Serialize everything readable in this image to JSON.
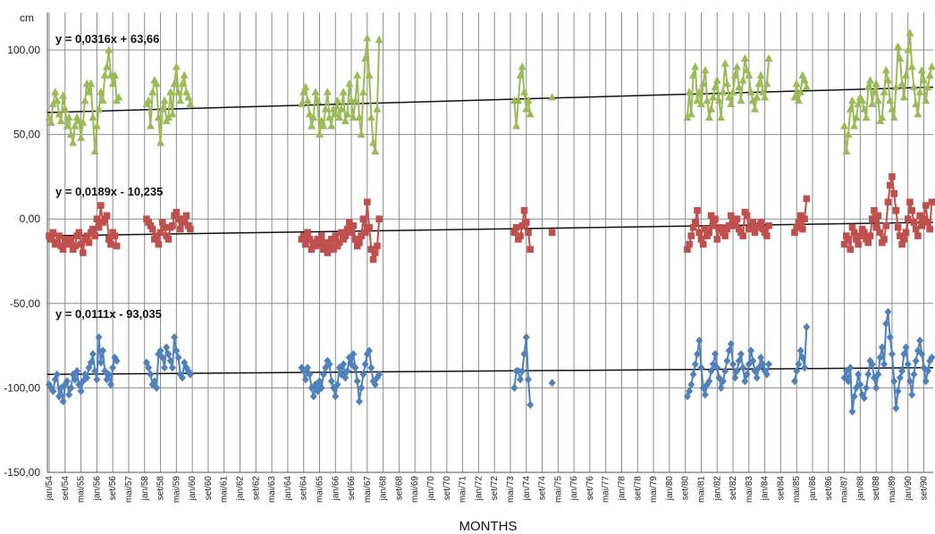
{
  "chart_data": {
    "type": "scatter",
    "title": "",
    "xlabel": "MONTHS",
    "ylabel": "",
    "y_unit": "cm",
    "ylim": [
      -150,
      120
    ],
    "y_ticks": [
      {
        "value": 100,
        "label": "100,00"
      },
      {
        "value": 50,
        "label": "50,00"
      },
      {
        "value": 0,
        "label": "0,00"
      },
      {
        "value": -50,
        "label": "-50,00"
      },
      {
        "value": -100,
        "label": "-100,00"
      },
      {
        "value": -150,
        "label": "-150,00"
      }
    ],
    "x_ticks": [
      "jan/54",
      "set/54",
      "mai/55",
      "jan/56",
      "set/56",
      "mai/57",
      "jan/58",
      "set/58",
      "mai/59",
      "jan/60",
      "set/60",
      "mai/61",
      "jan/62",
      "set/62",
      "mai/63",
      "jan/64",
      "set/64",
      "mai/65",
      "jan/66",
      "set/66",
      "mai/67",
      "jan/68",
      "set/68",
      "mai/69",
      "jan/70",
      "set/70",
      "mai/71",
      "jan/72",
      "set/72",
      "mai/73",
      "jan/74",
      "set/74",
      "mai/75",
      "jan/76",
      "set/76",
      "mai/77",
      "jan/78",
      "set/78",
      "mai/79",
      "jan/80",
      "set/80",
      "mai/81",
      "jan/82",
      "set/82",
      "mai/83",
      "jan/84",
      "set/84",
      "mai/85",
      "jan/86",
      "set/86",
      "mai/87",
      "jan/88",
      "set/88",
      "mai/89",
      "jan/90",
      "set/90"
    ],
    "grid": true,
    "series": [
      {
        "name": "",
        "color": "#9bbb59",
        "marker": "triangle",
        "trendline": {
          "label": "y = 0,0316x + 63,66",
          "start": 63,
          "end": 78
        },
        "segments": [
          {
            "start_index": 0,
            "values": [
              60,
              57,
              68,
              75,
              70,
              62,
              58,
              73,
              65,
              55,
              60,
              50,
              45,
              55,
              60,
              58,
              48,
              57,
              70,
              80,
              75,
              80,
              60,
              40,
              55,
              65,
              75,
              70,
              85,
              90,
              100,
              85,
              80,
              85,
              70,
              72
            ]
          },
          {
            "start_index": 49,
            "values": [
              68,
              70,
              55,
              75,
              82,
              80,
              60,
              45,
              65,
              70,
              58,
              60,
              75,
              62,
              80,
              90,
              75,
              70,
              80,
              85,
              75,
              72,
              68
            ]
          },
          {
            "start_index": 127,
            "values": [
              68,
              75,
              78,
              70,
              62,
              55,
              60,
              75,
              70,
              50,
              58,
              55,
              65,
              75,
              60,
              55,
              65,
              62,
              70,
              60,
              65,
              75,
              58,
              62,
              80,
              70,
              60,
              70,
              85,
              60,
              50,
              75,
              95,
              107,
              85,
              60,
              45,
              40,
              65,
              106
            ]
          },
          {
            "start_index": 234,
            "values": [
              70,
              55,
              70,
              85,
              90,
              75,
              65,
              70,
              62
            ]
          },
          {
            "start_index": 253,
            "values": [
              72
            ]
          },
          {
            "start_index": 321,
            "values": [
              60,
              75,
              62,
              85,
              90,
              70,
              75,
              68,
              80,
              88,
              70,
              60,
              65,
              72,
              78,
              82,
              70,
              60,
              75,
              92,
              80,
              72,
              68,
              75,
              85,
              90,
              78,
              70,
              82,
              95,
              88,
              85,
              75,
              70,
              65,
              72,
              80,
              85,
              75,
              72,
              80,
              95
            ]
          },
          {
            "start_index": 375,
            "values": [
              72,
              80,
              70,
              75,
              85,
              82,
              78
            ]
          },
          {
            "start_index": 400,
            "values": [
              55,
              40,
              50,
              65,
              70,
              55,
              60,
              68,
              72,
              70,
              65,
              60,
              78,
              82,
              68,
              75,
              80,
              70,
              58,
              60,
              75,
              88,
              82,
              70,
              65,
              60,
              78,
              102,
              95,
              80,
              72,
              85,
              100,
              110,
              90,
              78,
              68,
              62,
              75,
              88,
              82,
              70,
              78,
              85,
              90
            ]
          }
        ]
      },
      {
        "name": "",
        "color": "#c0504d",
        "marker": "square",
        "trendline": {
          "label": "y = 0,0189x - 10,235",
          "start": -10,
          "end": -2
        },
        "segments": [
          {
            "start_index": 0,
            "values": [
              -10,
              -12,
              -8,
              -15,
              -14,
              -10,
              -16,
              -18,
              -12,
              -15,
              -14,
              -12,
              -18,
              -16,
              -10,
              -8,
              -15,
              -20,
              -12,
              -10,
              -14,
              -8,
              -6,
              -10,
              0,
              -5,
              8,
              -2,
              0,
              2,
              -12,
              -15,
              -8,
              -10,
              -16
            ]
          },
          {
            "start_index": 49,
            "values": [
              0,
              -2,
              -4,
              -6,
              -12,
              -10,
              -15,
              -8,
              -2,
              -5,
              -10,
              -12,
              -5,
              -4,
              2,
              4,
              0,
              -6,
              -2,
              0,
              2,
              -4,
              -6
            ]
          },
          {
            "start_index": 127,
            "values": [
              -12,
              -10,
              -15,
              -8,
              -12,
              -18,
              -14,
              -16,
              -12,
              -15,
              -10,
              -18,
              -14,
              -20,
              -16,
              -12,
              -18,
              -10,
              -16,
              -14,
              -8,
              -12,
              -10,
              -6,
              -2,
              -8,
              -4,
              -12,
              -16,
              -14,
              -10,
              0,
              -8,
              10,
              -5,
              -18,
              -24,
              -20,
              -16,
              0
            ]
          },
          {
            "start_index": 234,
            "values": [
              -8,
              -5,
              -12,
              -10,
              -4,
              5,
              -2,
              -8,
              -18
            ]
          },
          {
            "start_index": 253,
            "values": [
              -8
            ]
          },
          {
            "start_index": 321,
            "values": [
              -18,
              -15,
              -10,
              -5,
              -2,
              5,
              -8,
              -12,
              -15,
              -6,
              -10,
              -8,
              2,
              -4,
              0,
              -12,
              -6,
              -5,
              -8,
              -10,
              -6,
              -4,
              2,
              -2,
              -4,
              0,
              -6,
              -8,
              -10,
              4,
              2,
              -6,
              -4,
              -2,
              -8,
              -5,
              -4,
              -2,
              -6,
              -8,
              -10,
              -4
            ]
          },
          {
            "start_index": 375,
            "values": [
              -8,
              -5,
              -2,
              2,
              -6,
              0,
              12
            ]
          },
          {
            "start_index": 400,
            "values": [
              -15,
              -10,
              -12,
              -18,
              -5,
              -8,
              -12,
              -15,
              -10,
              -6,
              -8,
              -12,
              -14,
              -10,
              0,
              5,
              -5,
              2,
              -8,
              -14,
              -12,
              -4,
              10,
              20,
              25,
              15,
              5,
              -5,
              -10,
              -15,
              -12,
              -8,
              0,
              10,
              5,
              -2,
              -6,
              -10,
              2,
              -4,
              0,
              8,
              -2,
              -6,
              10
            ]
          }
        ]
      },
      {
        "name": "",
        "color": "#4f81bd",
        "marker": "diamond",
        "trendline": {
          "label": "y = 0,0111x - 93,035",
          "start": -92,
          "end": -88
        },
        "segments": [
          {
            "start_index": 0,
            "values": [
              -98,
              -100,
              -102,
              -95,
              -92,
              -105,
              -100,
              -108,
              -98,
              -96,
              -104,
              -100,
              -92,
              -95,
              -90,
              -98,
              -102,
              -96,
              -92,
              -94,
              -88,
              -85,
              -80,
              -90,
              -95,
              -70,
              -85,
              -78,
              -90,
              -95,
              -92,
              -98,
              -88,
              -82,
              -84
            ]
          },
          {
            "start_index": 49,
            "values": [
              -85,
              -88,
              -92,
              -98,
              -96,
              -100,
              -80,
              -78,
              -82,
              -88,
              -76,
              -80,
              -84,
              -88,
              -70,
              -78,
              -82,
              -92,
              -94,
              -85,
              -88,
              -90,
              -92
            ]
          },
          {
            "start_index": 127,
            "values": [
              -88,
              -90,
              -95,
              -88,
              -92,
              -100,
              -105,
              -98,
              -102,
              -96,
              -100,
              -92,
              -88,
              -84,
              -86,
              -96,
              -100,
              -105,
              -98,
              -88,
              -92,
              -86,
              -94,
              -90,
              -82,
              -86,
              -80,
              -88,
              -96,
              -108,
              -100,
              -92,
              -86,
              -80,
              -78,
              -88,
              -96,
              -98,
              -94,
              -92
            ]
          },
          {
            "start_index": 234,
            "values": [
              -100,
              -90,
              -90,
              -95,
              -90,
              -80,
              -70,
              -95,
              -110
            ]
          },
          {
            "start_index": 253,
            "values": [
              -97
            ]
          },
          {
            "start_index": 321,
            "values": [
              -105,
              -102,
              -98,
              -92,
              -86,
              -80,
              -72,
              -88,
              -100,
              -104,
              -98,
              -96,
              -90,
              -86,
              -80,
              -88,
              -94,
              -100,
              -96,
              -90,
              -84,
              -78,
              -74,
              -86,
              -94,
              -90,
              -84,
              -80,
              -88,
              -96,
              -92,
              -86,
              -78,
              -84,
              -90,
              -94,
              -88,
              -82,
              -86,
              -90,
              -92,
              -86
            ]
          },
          {
            "start_index": 375,
            "values": [
              -96,
              -90,
              -86,
              -78,
              -82,
              -88,
              -64
            ]
          },
          {
            "start_index": 400,
            "values": [
              -94,
              -90,
              -96,
              -88,
              -114,
              -105,
              -100,
              -92,
              -98,
              -104,
              -106,
              -100,
              -92,
              -84,
              -86,
              -94,
              -100,
              -92,
              -82,
              -76,
              -86,
              -62,
              -55,
              -70,
              -80,
              -96,
              -112,
              -102,
              -94,
              -90,
              -80,
              -76,
              -86,
              -96,
              -104,
              -92,
              -84,
              -78,
              -72,
              -80,
              -88,
              -96,
              -90,
              -84,
              -82
            ]
          }
        ]
      }
    ]
  }
}
